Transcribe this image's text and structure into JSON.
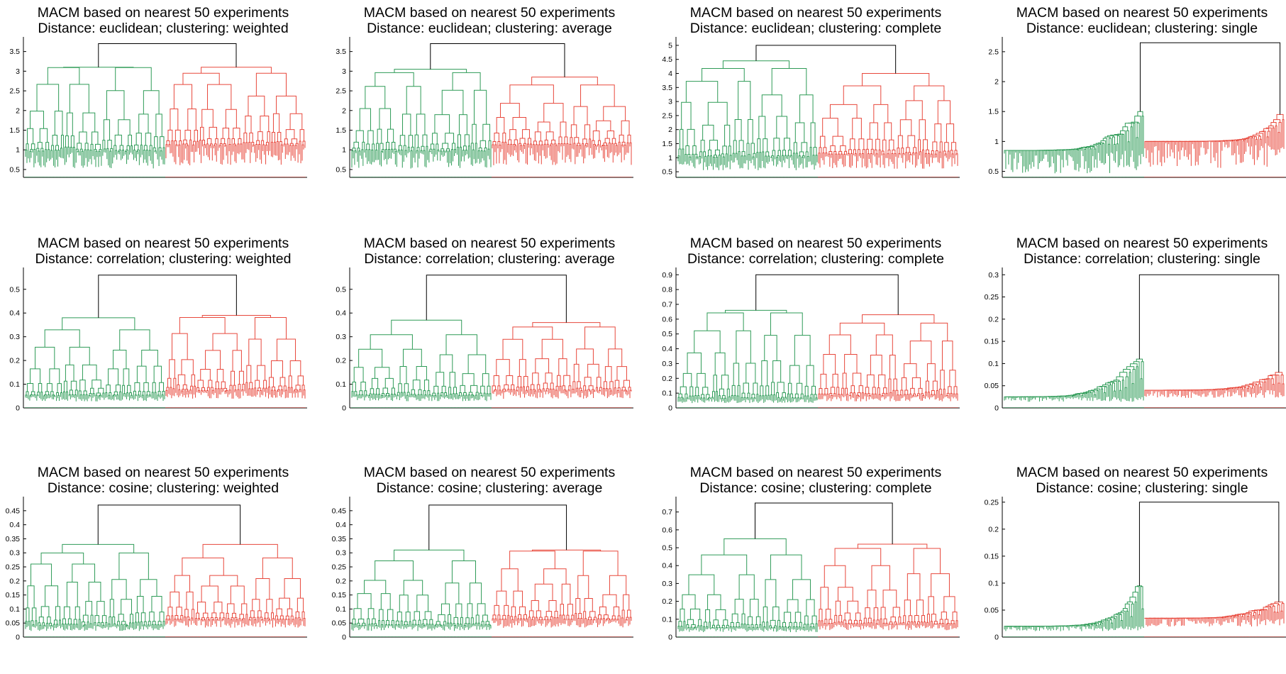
{
  "figure": {
    "colors": {
      "cluster_a": "#2e9b57",
      "cluster_b": "#e8483c",
      "root": "#000000",
      "axis": "#000000"
    },
    "leaf_count": 200
  },
  "chart_data": [
    {
      "type": "dendrogram",
      "title": "MACM based on nearest 50 experiments",
      "subtitle": "Distance: euclidean; clustering: weighted",
      "yticks": [
        "0.5",
        "1",
        "1.5",
        "2",
        "2.5",
        "3",
        "3.5"
      ],
      "ylim": [
        0.3,
        3.8
      ],
      "root_height": 3.7,
      "clusters": [
        {
          "color": "green",
          "height": 3.1,
          "leaf_base": 0.95
        },
        {
          "color": "red",
          "height": 3.1,
          "leaf_base": 1.1
        }
      ]
    },
    {
      "type": "dendrogram",
      "title": "MACM based on nearest 50 experiments",
      "subtitle": "Distance: euclidean; clustering: average",
      "yticks": [
        "0.5",
        "1",
        "1.5",
        "2",
        "2.5",
        "3",
        "3.5"
      ],
      "ylim": [
        0.3,
        3.8
      ],
      "root_height": 3.7,
      "clusters": [
        {
          "color": "green",
          "height": 3.05,
          "leaf_base": 0.95
        },
        {
          "color": "red",
          "height": 2.85,
          "leaf_base": 1.1
        }
      ]
    },
    {
      "type": "dendrogram",
      "title": "MACM based on nearest 50 experiments",
      "subtitle": "Distance: euclidean; clustering: complete",
      "yticks": [
        "0.5",
        "1",
        "1.5",
        "2",
        "2.5",
        "3",
        "3.5",
        "4",
        "4.5",
        "5"
      ],
      "ylim": [
        0.3,
        5.2
      ],
      "root_height": 5.0,
      "clusters": [
        {
          "color": "green",
          "height": 4.45,
          "leaf_base": 1.0
        },
        {
          "color": "red",
          "height": 4.0,
          "leaf_base": 1.1
        }
      ]
    },
    {
      "type": "dendrogram",
      "title": "MACM based on nearest 50 experiments",
      "subtitle": "Distance: euclidean; clustering: single",
      "yticks": [
        "0.5",
        "1",
        "1.5",
        "2",
        "2.5"
      ],
      "ylim": [
        0.4,
        2.7
      ],
      "root_height": 2.65,
      "clusters": [
        {
          "color": "green",
          "height": 1.5,
          "leaf_base": 0.85
        },
        {
          "color": "red",
          "height": 1.45,
          "leaf_base": 1.0
        }
      ],
      "chain": true
    },
    {
      "type": "dendrogram",
      "title": "MACM based on nearest 50 experiments",
      "subtitle": "Distance: correlation; clustering: weighted",
      "yticks": [
        "0",
        "0.1",
        "0.2",
        "0.3",
        "0.4",
        "0.5"
      ],
      "ylim": [
        0,
        0.58
      ],
      "root_height": 0.56,
      "clusters": [
        {
          "color": "green",
          "height": 0.38,
          "leaf_base": 0.05
        },
        {
          "color": "red",
          "height": 0.39,
          "leaf_base": 0.07
        }
      ]
    },
    {
      "type": "dendrogram",
      "title": "MACM based on nearest 50 experiments",
      "subtitle": "Distance: correlation; clustering: average",
      "yticks": [
        "0",
        "0.1",
        "0.2",
        "0.3",
        "0.4",
        "0.5"
      ],
      "ylim": [
        0,
        0.58
      ],
      "root_height": 0.56,
      "clusters": [
        {
          "color": "green",
          "height": 0.37,
          "leaf_base": 0.05
        },
        {
          "color": "red",
          "height": 0.36,
          "leaf_base": 0.07
        }
      ]
    },
    {
      "type": "dendrogram",
      "title": "MACM based on nearest 50 experiments",
      "subtitle": "Distance: correlation; clustering: complete",
      "yticks": [
        "0",
        "0.1",
        "0.2",
        "0.3",
        "0.4",
        "0.5",
        "0.6",
        "0.7",
        "0.8",
        "0.9"
      ],
      "ylim": [
        0,
        0.93
      ],
      "root_height": 0.9,
      "clusters": [
        {
          "color": "green",
          "height": 0.66,
          "leaf_base": 0.06
        },
        {
          "color": "red",
          "height": 0.63,
          "leaf_base": 0.08
        }
      ]
    },
    {
      "type": "dendrogram",
      "title": "MACM based on nearest 50 experiments",
      "subtitle": "Distance: correlation; clustering: single",
      "yticks": [
        "0",
        "0.05",
        "0.1",
        "0.15",
        "0.2",
        "0.25",
        "0.3"
      ],
      "ylim": [
        0,
        0.31
      ],
      "root_height": 0.3,
      "clusters": [
        {
          "color": "green",
          "height": 0.11,
          "leaf_base": 0.025
        },
        {
          "color": "red",
          "height": 0.08,
          "leaf_base": 0.04
        }
      ],
      "chain": true
    },
    {
      "type": "dendrogram",
      "title": "MACM based on nearest 50 experiments",
      "subtitle": "Distance: cosine; clustering: weighted",
      "yticks": [
        "0",
        "0.05",
        "0.1",
        "0.15",
        "0.2",
        "0.25",
        "0.3",
        "0.35",
        "0.4",
        "0.45"
      ],
      "ylim": [
        0,
        0.49
      ],
      "root_height": 0.47,
      "clusters": [
        {
          "color": "green",
          "height": 0.33,
          "leaf_base": 0.04
        },
        {
          "color": "red",
          "height": 0.33,
          "leaf_base": 0.06
        }
      ]
    },
    {
      "type": "dendrogram",
      "title": "MACM based on nearest 50 experiments",
      "subtitle": "Distance: cosine; clustering: average",
      "yticks": [
        "0",
        "0.05",
        "0.1",
        "0.15",
        "0.2",
        "0.25",
        "0.3",
        "0.35",
        "0.4",
        "0.45"
      ],
      "ylim": [
        0,
        0.49
      ],
      "root_height": 0.47,
      "clusters": [
        {
          "color": "green",
          "height": 0.31,
          "leaf_base": 0.04
        },
        {
          "color": "red",
          "height": 0.31,
          "leaf_base": 0.06
        }
      ]
    },
    {
      "type": "dendrogram",
      "title": "MACM based on nearest 50 experiments",
      "subtitle": "Distance: cosine; clustering: complete",
      "yticks": [
        "0",
        "0.1",
        "0.2",
        "0.3",
        "0.4",
        "0.5",
        "0.6",
        "0.7"
      ],
      "ylim": [
        0,
        0.77
      ],
      "root_height": 0.75,
      "clusters": [
        {
          "color": "green",
          "height": 0.55,
          "leaf_base": 0.05
        },
        {
          "color": "red",
          "height": 0.52,
          "leaf_base": 0.07
        }
      ]
    },
    {
      "type": "dendrogram",
      "title": "MACM based on nearest 50 experiments",
      "subtitle": "Distance: cosine; clustering: single",
      "yticks": [
        "0",
        "0.05",
        "0.1",
        "0.15",
        "0.2",
        "0.25"
      ],
      "ylim": [
        0,
        0.255
      ],
      "root_height": 0.25,
      "clusters": [
        {
          "color": "green",
          "height": 0.095,
          "leaf_base": 0.02
        },
        {
          "color": "red",
          "height": 0.065,
          "leaf_base": 0.035
        }
      ],
      "chain": true
    }
  ]
}
